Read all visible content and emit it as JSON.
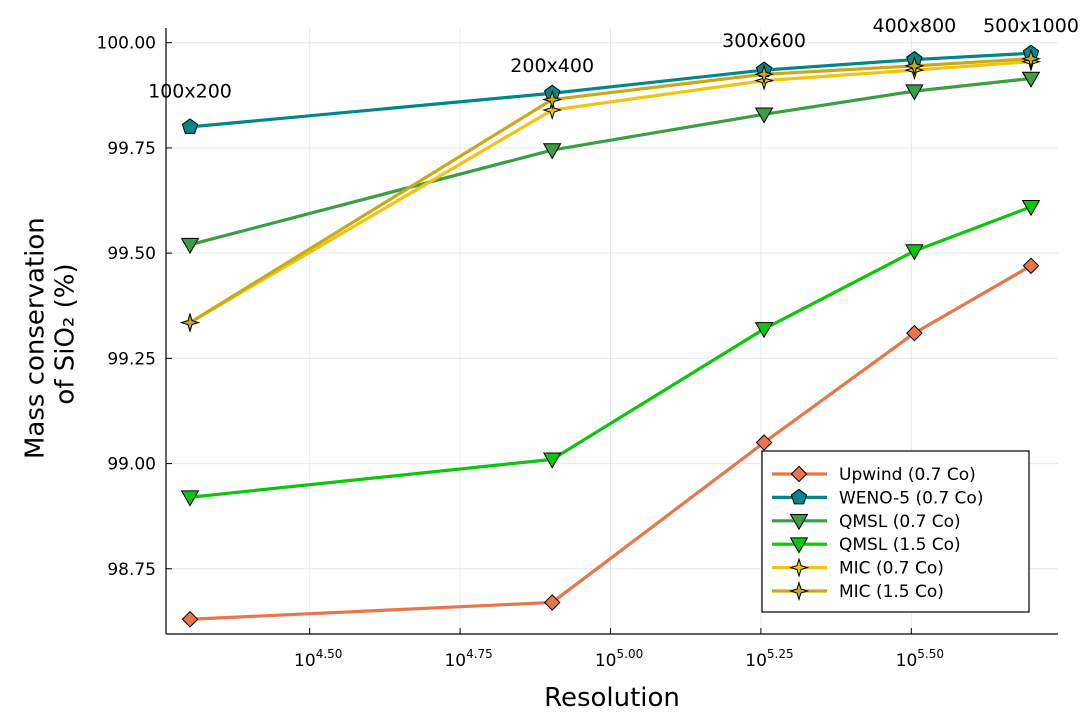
{
  "chart_data": {
    "type": "line",
    "xlabel": "Resolution",
    "ylabel_lines": [
      "Mass conservation",
      "of SiO₂ (%)"
    ],
    "xscale": "log10",
    "xlim": [
      20000,
      500000
    ],
    "ylim": [
      98.595,
      100.035
    ],
    "x_ticks": [
      {
        "value": 31622.8,
        "base": "10",
        "exponent": "4.50"
      },
      {
        "value": 56234.1,
        "base": "10",
        "exponent": "4.75"
      },
      {
        "value": 100000,
        "base": "10",
        "exponent": "5.00"
      },
      {
        "value": 177827.9,
        "base": "10",
        "exponent": "5.25"
      },
      {
        "value": 316227.8,
        "base": "10",
        "exponent": "5.50"
      }
    ],
    "y_ticks": [
      {
        "value": 98.75,
        "label": "98.75"
      },
      {
        "value": 99.0,
        "label": "99.00"
      },
      {
        "value": 99.25,
        "label": "99.25"
      },
      {
        "value": 99.5,
        "label": "99.50"
      },
      {
        "value": 99.75,
        "label": "99.75"
      },
      {
        "value": 100.0,
        "label": "100.00"
      }
    ],
    "grid": true,
    "legend_position": "bottom-right",
    "x": [
      20000,
      80000,
      180000,
      320000,
      500000
    ],
    "annotations": [
      {
        "text": "100x200",
        "x": 20000,
        "y": 99.87
      },
      {
        "text": "200x400",
        "x": 80000,
        "y": 99.93
      },
      {
        "text": "300x600",
        "x": 180000,
        "y": 99.99
      },
      {
        "text": "400x800",
        "x": 320000,
        "y": 100.025
      },
      {
        "text": "500x1000",
        "x": 500000,
        "y": 100.025
      }
    ],
    "series": [
      {
        "name": "Upwind (0.7 Co)",
        "color": "#e8764a",
        "marker": "diamond",
        "values": [
          98.63,
          98.67,
          99.05,
          99.31,
          99.47
        ]
      },
      {
        "name": "WENO-5 (0.7 Co)",
        "color": "#00868b",
        "marker": "pentagon",
        "values": [
          99.8,
          99.88,
          99.935,
          99.96,
          99.975
        ]
      },
      {
        "name": "QMSL (0.7 Co)",
        "color": "#3a9e43",
        "marker": "triangle-down",
        "values": [
          99.52,
          99.745,
          99.83,
          99.885,
          99.915
        ]
      },
      {
        "name": "QMSL (1.5 Co)",
        "color": "#0ac70a",
        "marker": "triangle-down",
        "values": [
          98.92,
          99.01,
          99.32,
          99.505,
          99.61
        ]
      },
      {
        "name": "MIC (0.7 Co)",
        "color": "#f2c30f",
        "marker": "star4",
        "values": [
          99.335,
          99.84,
          99.91,
          99.935,
          99.955
        ]
      },
      {
        "name": "MIC (1.5 Co)",
        "color": "#c9aa16",
        "marker": "star4",
        "values": [
          99.335,
          99.865,
          99.925,
          99.945,
          99.962
        ]
      }
    ]
  }
}
